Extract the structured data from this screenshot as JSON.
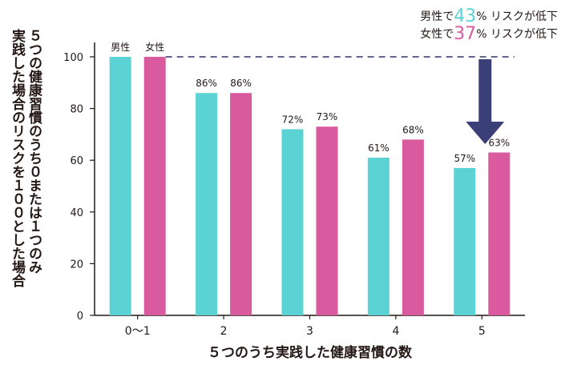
{
  "chart_data": {
    "type": "bar",
    "categories": [
      "0～1",
      "2",
      "3",
      "4",
      "5"
    ],
    "series": [
      {
        "name": "男性",
        "values": [
          100,
          86,
          72,
          61,
          57
        ],
        "color": "#5bd3d4"
      },
      {
        "name": "女性",
        "values": [
          100,
          86,
          73,
          68,
          63
        ],
        "color": "#d95a9f"
      }
    ],
    "value_labels": {
      "男性": [
        "男性",
        "86%",
        "72%",
        "61%",
        "57%"
      ],
      "女性": [
        "女性",
        "86%",
        "73%",
        "68%",
        "63%"
      ]
    },
    "ylim": [
      0,
      100
    ],
    "yticks": [
      0,
      20,
      40,
      60,
      80,
      100
    ],
    "xlabel": "５つのうち実践した健康習慣の数",
    "ylabel_lines": [
      "５つの健康習慣のうち０または１つのみ",
      "実践した場合のリスクを１００とした場合"
    ],
    "grid": false,
    "reference_line": {
      "value": 100,
      "style": "dashed",
      "color": "#2f3368"
    },
    "arrow_color": "#3b3f78",
    "axis_color": "#231815"
  },
  "callout": {
    "men": {
      "prefix": "男性で",
      "number": "43",
      "percent": "%",
      "suffix": " リスクが低下",
      "color": "#5bd3d4"
    },
    "women": {
      "prefix": "女性で",
      "number": "37",
      "percent": "%",
      "suffix": " リスクが低下",
      "color": "#d95a9f"
    }
  }
}
